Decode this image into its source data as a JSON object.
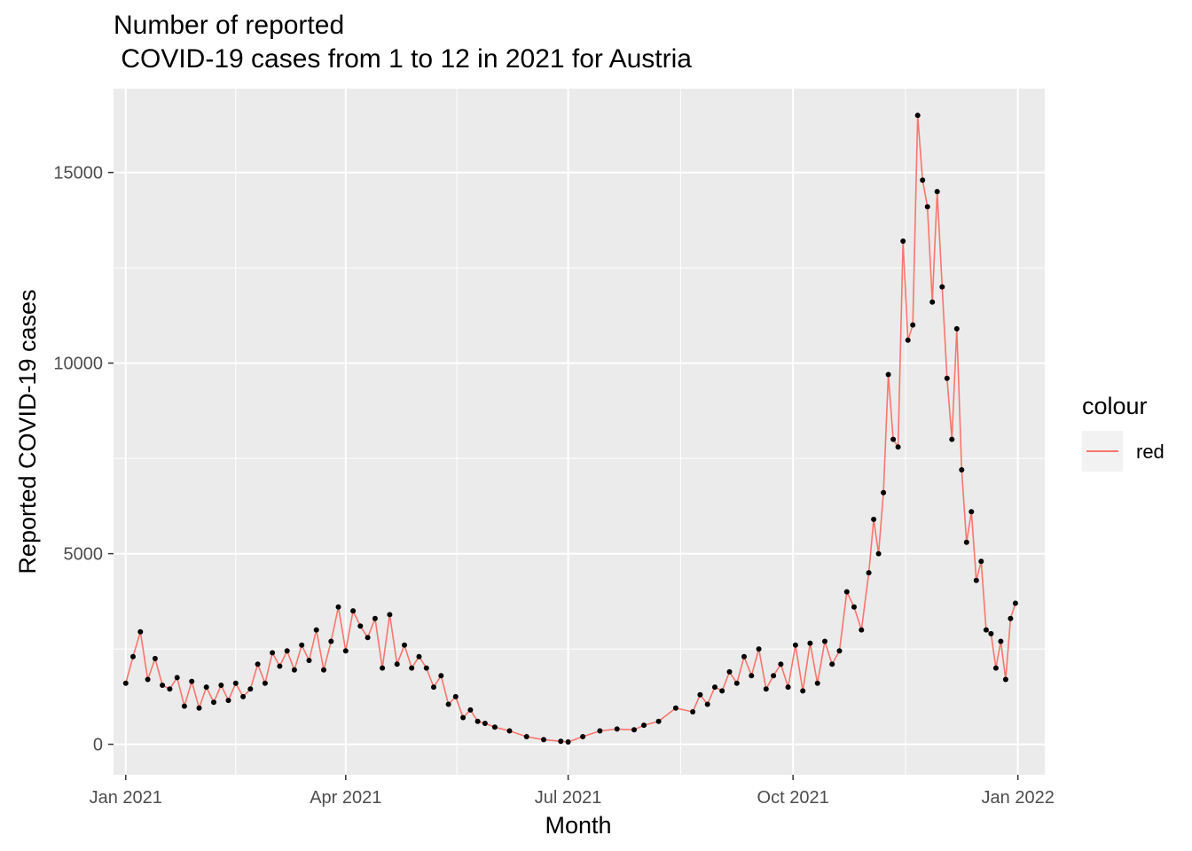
{
  "chart_data": {
    "type": "line",
    "title_lines": [
      "Number of reported",
      " COVID-19 cases from 1 to 12 in 2021 for Austria"
    ],
    "xlabel": "Month",
    "ylabel": "Reported COVID-19 cases",
    "x_ticks": [
      {
        "date": "2021-01-01",
        "label": "Jan 2021"
      },
      {
        "date": "2021-04-01",
        "label": "Apr 2021"
      },
      {
        "date": "2021-07-01",
        "label": "Jul 2021"
      },
      {
        "date": "2021-10-01",
        "label": "Oct 2021"
      },
      {
        "date": "2022-01-01",
        "label": "Jan 2022"
      }
    ],
    "y_ticks": [
      0,
      5000,
      10000,
      15000
    ],
    "xlim": [
      "2020-12-27",
      "2022-01-12"
    ],
    "ylim": [
      -800,
      17200
    ],
    "grid": true,
    "legend": {
      "title": "colour",
      "entries": [
        "red"
      ],
      "placement": "right"
    },
    "colors": {
      "line": "#f8766d",
      "points": "#000000",
      "panel": "#ebebeb",
      "grid": "#ffffff"
    },
    "series": [
      {
        "name": "red",
        "x": [
          "2021-01-01",
          "2021-01-04",
          "2021-01-07",
          "2021-01-10",
          "2021-01-13",
          "2021-01-16",
          "2021-01-19",
          "2021-01-22",
          "2021-01-25",
          "2021-01-28",
          "2021-01-31",
          "2021-02-03",
          "2021-02-06",
          "2021-02-09",
          "2021-02-12",
          "2021-02-15",
          "2021-02-18",
          "2021-02-21",
          "2021-02-24",
          "2021-02-27",
          "2021-03-02",
          "2021-03-05",
          "2021-03-08",
          "2021-03-11",
          "2021-03-14",
          "2021-03-17",
          "2021-03-20",
          "2021-03-23",
          "2021-03-26",
          "2021-03-29",
          "2021-04-01",
          "2021-04-04",
          "2021-04-07",
          "2021-04-10",
          "2021-04-13",
          "2021-04-16",
          "2021-04-19",
          "2021-04-22",
          "2021-04-25",
          "2021-04-28",
          "2021-05-01",
          "2021-05-04",
          "2021-05-07",
          "2021-05-10",
          "2021-05-13",
          "2021-05-16",
          "2021-05-19",
          "2021-05-22",
          "2021-05-25",
          "2021-05-28",
          "2021-06-01",
          "2021-06-07",
          "2021-06-14",
          "2021-06-21",
          "2021-06-28",
          "2021-07-01",
          "2021-07-07",
          "2021-07-14",
          "2021-07-21",
          "2021-07-28",
          "2021-08-01",
          "2021-08-07",
          "2021-08-14",
          "2021-08-21",
          "2021-08-24",
          "2021-08-27",
          "2021-08-30",
          "2021-09-02",
          "2021-09-05",
          "2021-09-08",
          "2021-09-11",
          "2021-09-14",
          "2021-09-17",
          "2021-09-20",
          "2021-09-23",
          "2021-09-26",
          "2021-09-29",
          "2021-10-02",
          "2021-10-05",
          "2021-10-08",
          "2021-10-11",
          "2021-10-14",
          "2021-10-17",
          "2021-10-20",
          "2021-10-23",
          "2021-10-26",
          "2021-10-29",
          "2021-11-01",
          "2021-11-03",
          "2021-11-05",
          "2021-11-07",
          "2021-11-09",
          "2021-11-11",
          "2021-11-13",
          "2021-11-15",
          "2021-11-17",
          "2021-11-19",
          "2021-11-21",
          "2021-11-23",
          "2021-11-25",
          "2021-11-27",
          "2021-11-29",
          "2021-12-01",
          "2021-12-03",
          "2021-12-05",
          "2021-12-07",
          "2021-12-09",
          "2021-12-11",
          "2021-12-13",
          "2021-12-15",
          "2021-12-17",
          "2021-12-19",
          "2021-12-21",
          "2021-12-23",
          "2021-12-25",
          "2021-12-27",
          "2021-12-29",
          "2021-12-31"
        ],
        "values": [
          1600,
          2300,
          2950,
          1700,
          2250,
          1550,
          1450,
          1750,
          1000,
          1650,
          950,
          1500,
          1100,
          1550,
          1150,
          1600,
          1250,
          1450,
          2100,
          1600,
          2400,
          2050,
          2450,
          1950,
          2600,
          2200,
          3000,
          1950,
          2700,
          3600,
          2450,
          3500,
          3100,
          2800,
          3300,
          2000,
          3400,
          2100,
          2600,
          2000,
          2300,
          2000,
          1500,
          1800,
          1050,
          1250,
          700,
          900,
          600,
          550,
          450,
          350,
          200,
          120,
          80,
          60,
          200,
          350,
          400,
          380,
          500,
          600,
          950,
          850,
          1300,
          1050,
          1500,
          1400,
          1900,
          1600,
          2300,
          1800,
          2500,
          1450,
          1800,
          2100,
          1500,
          2600,
          1400,
          2650,
          1600,
          2700,
          2100,
          2450,
          4000,
          3600,
          3000,
          4500,
          5900,
          5000,
          6600,
          9700,
          8000,
          7800,
          13200,
          10600,
          11000,
          16500,
          14800,
          14100,
          11600,
          14500,
          12000,
          9600,
          8000,
          10900,
          7200,
          5300,
          6100,
          4300,
          4800,
          3000,
          2900,
          2000,
          2700,
          1700,
          3300,
          3700
        ]
      }
    ]
  }
}
